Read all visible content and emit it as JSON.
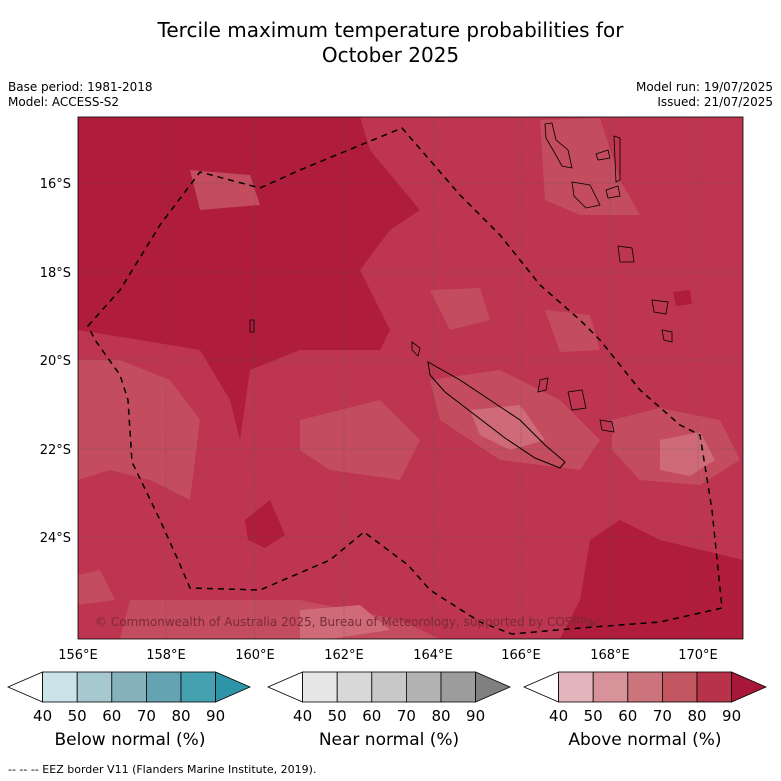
{
  "title_line1": "Tercile maximum temperature probabilities for",
  "title_line2": "October 2025",
  "base_period": "Base period: 1981-2018",
  "model": "Model: ACCESS-S2",
  "model_run": "Model run: 19/07/2025",
  "issued": "Issued: 21/07/2025",
  "lat_labels": [
    "16°S",
    "18°S",
    "20°S",
    "22°S",
    "24°S"
  ],
  "lon_labels": [
    "156°E",
    "158°E",
    "160°E",
    "162°E",
    "164°E",
    "166°E",
    "168°E",
    "170°E"
  ],
  "copyright": "© Commonwealth of Australia 2025, Bureau of Meteorology, supported by COSPPac",
  "colorbars": [
    {
      "label": "Below normal (%)",
      "ticks": [
        "40",
        "50",
        "60",
        "70",
        "80",
        "90"
      ],
      "colors": [
        "#ffffff",
        "#c9e3e8",
        "#a6c8cf",
        "#86b2bd",
        "#64a3b2",
        "#45a0b0",
        "#2e95a8"
      ]
    },
    {
      "label": "Near normal (%)",
      "ticks": [
        "40",
        "50",
        "60",
        "70",
        "80",
        "90"
      ],
      "colors": [
        "#ffffff",
        "#e7e7e7",
        "#d8d8d8",
        "#c8c8c8",
        "#b3b3b3",
        "#9c9c9c",
        "#808080"
      ]
    },
    {
      "label": "Above normal (%)",
      "ticks": [
        "40",
        "50",
        "60",
        "70",
        "80",
        "90"
      ],
      "colors": [
        "#ffffff",
        "#e2b5bd",
        "#d8929a",
        "#cc747b",
        "#c25761",
        "#b8334a",
        "#a8163a"
      ]
    }
  ],
  "footnote": "--  --  -- EEZ border V11 (Flanders Marine Institute, 2019)."
}
